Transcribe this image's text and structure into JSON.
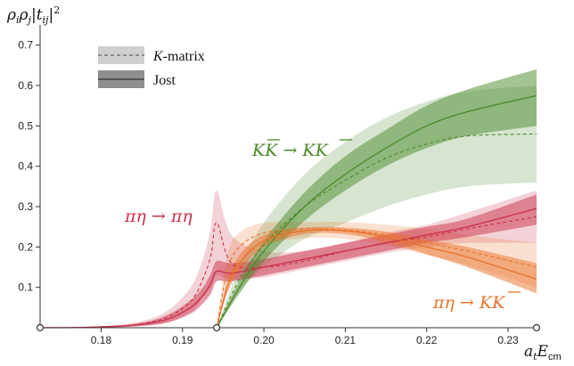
{
  "chart_data": {
    "type": "line",
    "ylabel": "ρ_i ρ_j |t_ij|²",
    "xlabel": "a_t E_cm",
    "xlim": [
      0.1725,
      0.2335
    ],
    "ylim": [
      0,
      0.75
    ],
    "x_ticks": [
      0.18,
      0.19,
      0.2,
      0.21,
      0.22,
      0.23
    ],
    "x_tick_labels": [
      "0.18",
      "0.19",
      "0.20",
      "0.21",
      "0.22",
      "0.23"
    ],
    "y_ticks": [
      0.1,
      0.2,
      0.3,
      0.4,
      0.5,
      0.6,
      0.7
    ],
    "y_tick_labels": [
      "0.1",
      "0.2",
      "0.3",
      "0.4",
      "0.5",
      "0.6",
      "0.7"
    ],
    "grid": false,
    "legend": {
      "position": "top-left",
      "entries": [
        {
          "label": "K-matrix",
          "style": "dashed"
        },
        {
          "label": "Jost",
          "style": "solid"
        }
      ]
    },
    "thresholds": [
      0.1725,
      0.1942
    ],
    "annotations": [
      {
        "label": "K K̄ → K K̄"
      },
      {
        "label": "πη → πη"
      },
      {
        "label": "πη → K K̄"
      }
    ],
    "series": [
      {
        "name": "πη → πη",
        "model": "Jost",
        "color": "#c93049",
        "x": [
          0.1725,
          0.178,
          0.184,
          0.188,
          0.191,
          0.1925,
          0.1935,
          0.1942,
          0.196,
          0.2,
          0.205,
          0.21,
          0.215,
          0.22,
          0.225,
          0.2335
        ],
        "y": [
          0.0,
          0.001,
          0.006,
          0.02,
          0.05,
          0.08,
          0.11,
          0.14,
          0.135,
          0.15,
          0.17,
          0.19,
          0.21,
          0.23,
          0.25,
          0.295
        ],
        "lower": [
          0.0,
          0.0,
          0.003,
          0.012,
          0.035,
          0.06,
          0.085,
          0.115,
          0.115,
          0.13,
          0.15,
          0.17,
          0.19,
          0.21,
          0.225,
          0.255
        ],
        "upper": [
          0.0,
          0.002,
          0.009,
          0.03,
          0.068,
          0.1,
          0.135,
          0.165,
          0.16,
          0.17,
          0.19,
          0.21,
          0.23,
          0.25,
          0.27,
          0.33
        ]
      },
      {
        "name": "πη → πη",
        "model": "K-matrix",
        "color": "#c93049",
        "x": [
          0.1725,
          0.178,
          0.184,
          0.188,
          0.191,
          0.1925,
          0.1935,
          0.1942,
          0.196,
          0.2,
          0.205,
          0.21,
          0.215,
          0.22,
          0.225,
          0.2335
        ],
        "y": [
          0.0,
          0.001,
          0.007,
          0.025,
          0.065,
          0.12,
          0.18,
          0.26,
          0.16,
          0.15,
          0.165,
          0.19,
          0.21,
          0.225,
          0.245,
          0.275
        ],
        "lower": [
          0.0,
          0.0,
          0.003,
          0.012,
          0.04,
          0.075,
          0.1,
          0.13,
          0.12,
          0.125,
          0.145,
          0.165,
          0.185,
          0.2,
          0.21,
          0.21
        ],
        "upper": [
          0.0,
          0.002,
          0.012,
          0.04,
          0.1,
          0.17,
          0.25,
          0.34,
          0.23,
          0.19,
          0.19,
          0.21,
          0.235,
          0.255,
          0.285,
          0.34
        ]
      },
      {
        "name": "K K̄ → K K̄",
        "model": "Jost",
        "color": "#4a8a2a",
        "x": [
          0.1942,
          0.197,
          0.2,
          0.205,
          0.21,
          0.215,
          0.22,
          0.225,
          0.2335
        ],
        "y": [
          0.0,
          0.1,
          0.19,
          0.3,
          0.38,
          0.445,
          0.5,
          0.535,
          0.575
        ],
        "lower": [
          0.0,
          0.085,
          0.165,
          0.265,
          0.34,
          0.4,
          0.445,
          0.475,
          0.5
        ],
        "upper": [
          0.0,
          0.115,
          0.215,
          0.335,
          0.425,
          0.49,
          0.55,
          0.59,
          0.64
        ]
      },
      {
        "name": "K K̄ → K K̄",
        "model": "K-matrix",
        "color": "#4a8a2a",
        "x": [
          0.1942,
          0.197,
          0.2,
          0.205,
          0.21,
          0.215,
          0.22,
          0.225,
          0.2335
        ],
        "y": [
          0.0,
          0.12,
          0.205,
          0.3,
          0.365,
          0.42,
          0.455,
          0.475,
          0.48
        ],
        "lower": [
          0.0,
          0.09,
          0.15,
          0.22,
          0.26,
          0.3,
          0.33,
          0.35,
          0.36
        ],
        "upper": [
          0.0,
          0.15,
          0.26,
          0.38,
          0.46,
          0.52,
          0.56,
          0.585,
          0.6
        ]
      },
      {
        "name": "πη → K K̄",
        "model": "Jost",
        "color": "#e8722a",
        "x": [
          0.1942,
          0.1955,
          0.197,
          0.2,
          0.205,
          0.21,
          0.215,
          0.22,
          0.225,
          0.2335
        ],
        "y": [
          0.0,
          0.1,
          0.16,
          0.215,
          0.24,
          0.24,
          0.225,
          0.2,
          0.175,
          0.12
        ],
        "lower": [
          0.0,
          0.085,
          0.14,
          0.2,
          0.232,
          0.232,
          0.212,
          0.182,
          0.15,
          0.085
        ],
        "upper": [
          0.0,
          0.115,
          0.18,
          0.23,
          0.248,
          0.248,
          0.238,
          0.218,
          0.2,
          0.16
        ]
      },
      {
        "name": "πη → K K̄",
        "model": "K-matrix",
        "color": "#e8722a",
        "x": [
          0.1942,
          0.1955,
          0.197,
          0.2,
          0.205,
          0.21,
          0.215,
          0.22,
          0.225,
          0.2335
        ],
        "y": [
          0.0,
          0.14,
          0.2,
          0.235,
          0.245,
          0.242,
          0.23,
          0.21,
          0.19,
          0.15
        ],
        "lower": [
          0.0,
          0.1,
          0.16,
          0.205,
          0.222,
          0.22,
          0.205,
          0.18,
          0.155,
          0.1
        ],
        "upper": [
          0.0,
          0.18,
          0.235,
          0.26,
          0.262,
          0.262,
          0.255,
          0.245,
          0.23,
          0.21
        ]
      }
    ]
  }
}
